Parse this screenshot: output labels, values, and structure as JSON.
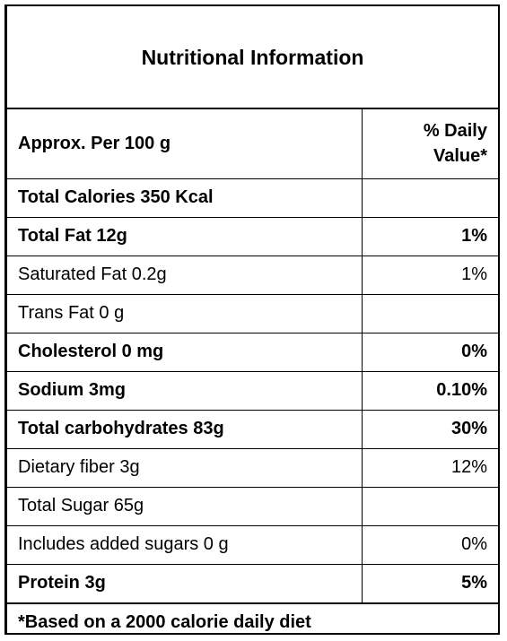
{
  "title": "Nutritional Information",
  "header": {
    "basis": "Approx. Per 100 g",
    "dv_line1": "% Daily",
    "dv_line2": "Value*"
  },
  "rows": [
    {
      "name": "Total Calories 350 Kcal",
      "dv": "",
      "bold": true
    },
    {
      "name": "Total Fat 12g",
      "dv": "1%",
      "bold": true
    },
    {
      "name": "Saturated Fat  0.2g",
      "dv": "1%",
      "bold": false
    },
    {
      "name": "Trans Fat 0 g",
      "dv": "",
      "bold": false
    },
    {
      "name": "Cholesterol 0 mg",
      "dv": "0%",
      "bold": true
    },
    {
      "name": "Sodium 3mg",
      "dv": "0.10%",
      "bold": true
    },
    {
      "name": "Total carbohydrates  83g",
      "dv": "30%",
      "bold": true
    },
    {
      "name": "Dietary fiber  3g",
      "dv": "12%",
      "bold": false
    },
    {
      "name": "Total Sugar 65g",
      "dv": "",
      "bold": false
    },
    {
      "name": "Includes added sugars 0 g",
      "dv": "0%",
      "bold": false
    },
    {
      "name": "Protein  3g",
      "dv": "5%",
      "bold": true
    }
  ],
  "footnote": "*Based on a 2000 calorie daily diet"
}
